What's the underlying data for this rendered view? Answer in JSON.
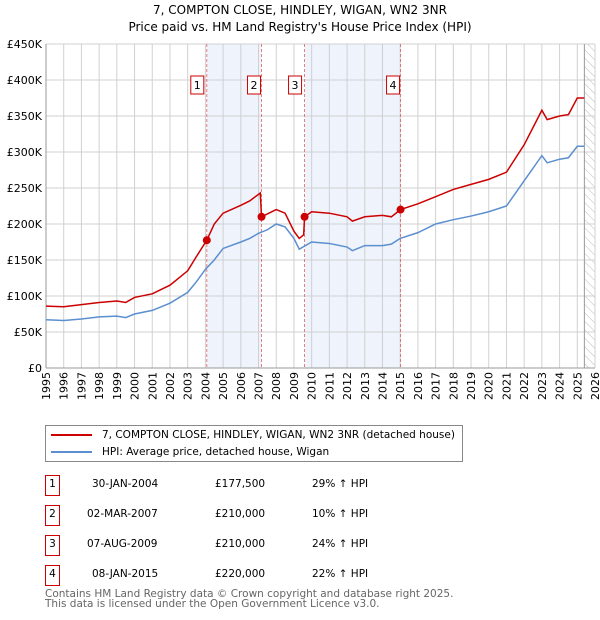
{
  "chart_data": {
    "type": "line",
    "title": "7, COMPTON CLOSE, HINDLEY, WIGAN, WN2 3NR",
    "subtitle": "Price paid vs. HM Land Registry's House Price Index (HPI)",
    "xlim": [
      1995,
      2026
    ],
    "ylim": [
      0,
      450000
    ],
    "x_ticks": [
      "1995",
      "1996",
      "1997",
      "1998",
      "1999",
      "2000",
      "2001",
      "2002",
      "2003",
      "2004",
      "2005",
      "2006",
      "2007",
      "2008",
      "2009",
      "2010",
      "2011",
      "2012",
      "2013",
      "2014",
      "2015",
      "2016",
      "2017",
      "2018",
      "2019",
      "2020",
      "2021",
      "2022",
      "2023",
      "2024",
      "2025",
      "2026"
    ],
    "y_ticks": [
      {
        "v": 0,
        "l": "£0"
      },
      {
        "v": 50000,
        "l": "£50K"
      },
      {
        "v": 100000,
        "l": "£100K"
      },
      {
        "v": 150000,
        "l": "£150K"
      },
      {
        "v": 200000,
        "l": "£200K"
      },
      {
        "v": 250000,
        "l": "£250K"
      },
      {
        "v": 300000,
        "l": "£300K"
      },
      {
        "v": 350000,
        "l": "£350K"
      },
      {
        "v": 400000,
        "l": "£400K"
      },
      {
        "v": 450000,
        "l": "£450K"
      }
    ],
    "grid": true,
    "forecast_start": 2025.4,
    "shaded_ranges": [
      [
        2004.08,
        2007.17
      ],
      [
        2009.6,
        2015.02
      ]
    ],
    "series": [
      {
        "name": "7, COMPTON CLOSE, HINDLEY, WIGAN, WN2 3NR (detached house)",
        "color": "#cc0000",
        "x": [
          1995,
          1996,
          1997,
          1998,
          1999,
          1999.5,
          2000,
          2001,
          2002,
          2003,
          2003.5,
          2004.08,
          2004.5,
          2005,
          2006,
          2006.5,
          2007.1,
          2007.17,
          2008,
          2008.5,
          2009,
          2009.3,
          2009.55,
          2009.6,
          2010,
          2011,
          2012,
          2012.3,
          2013,
          2014,
          2014.5,
          2015.02,
          2016,
          2017,
          2018,
          2019,
          2020,
          2021,
          2022,
          2023,
          2023.3,
          2024,
          2024.5,
          2025,
          2025.4
        ],
        "y": [
          86000,
          85000,
          88000,
          91000,
          93000,
          91000,
          98000,
          103000,
          115000,
          135000,
          155000,
          177500,
          200000,
          215000,
          226000,
          232000,
          243000,
          210000,
          220000,
          215000,
          190000,
          180000,
          185000,
          210000,
          217000,
          215000,
          210000,
          204000,
          210000,
          212000,
          210000,
          220000,
          228000,
          238000,
          248000,
          255000,
          262000,
          272000,
          310000,
          358000,
          345000,
          350000,
          352000,
          375000,
          375000
        ]
      },
      {
        "name": "HPI: Average price, detached house, Wigan",
        "color": "#5b8fd0",
        "x": [
          1995,
          1996,
          1997,
          1998,
          1999,
          1999.5,
          2000,
          2001,
          2002,
          2003,
          2003.5,
          2004,
          2004.5,
          2005,
          2006,
          2006.5,
          2007,
          2007.5,
          2008,
          2008.5,
          2009,
          2009.3,
          2010,
          2011,
          2012,
          2012.3,
          2013,
          2014,
          2014.5,
          2015,
          2016,
          2017,
          2018,
          2019,
          2020,
          2021,
          2022,
          2023,
          2023.3,
          2024,
          2024.5,
          2025,
          2025.4
        ],
        "y": [
          67000,
          66000,
          68000,
          71000,
          72000,
          70000,
          75000,
          80000,
          90000,
          105000,
          120000,
          137000,
          150000,
          166000,
          175000,
          180000,
          187000,
          192000,
          200000,
          196000,
          180000,
          165000,
          175000,
          173000,
          168000,
          163000,
          170000,
          170000,
          172000,
          180000,
          188000,
          200000,
          206000,
          211000,
          217000,
          225000,
          260000,
          295000,
          285000,
          290000,
          292000,
          308000,
          308000
        ]
      }
    ],
    "sales": [
      {
        "n": "1",
        "x": 2004.08,
        "y": 177500,
        "date": "30-JAN-2004",
        "price": "£177,500",
        "hpi": "29% ↑ HPI"
      },
      {
        "n": "2",
        "x": 2007.17,
        "y": 210000,
        "date": "02-MAR-2007",
        "price": "£210,000",
        "hpi": "10% ↑ HPI"
      },
      {
        "n": "3",
        "x": 2009.6,
        "y": 210000,
        "date": "07-AUG-2009",
        "price": "£210,000",
        "hpi": "24% ↑ HPI"
      },
      {
        "n": "4",
        "x": 2015.02,
        "y": 220000,
        "date": "08-JAN-2015",
        "price": "£220,000",
        "hpi": "22% ↑ HPI"
      }
    ]
  },
  "footer": {
    "line1": "Contains HM Land Registry data © Crown copyright and database right 2025.",
    "line2": "This data is licensed under the Open Government Licence v3.0."
  }
}
